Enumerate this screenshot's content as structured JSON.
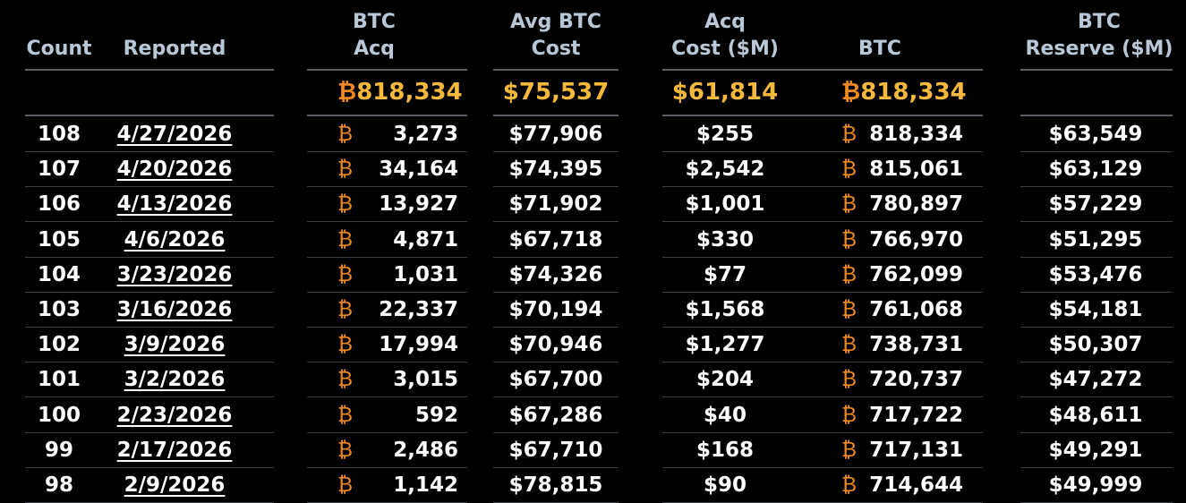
{
  "headers": {
    "count": "Count",
    "reported": "Reported",
    "btc_acq": [
      "BTC",
      "Acq"
    ],
    "avg_btc_cost": [
      "Avg BTC",
      "Cost"
    ],
    "acq_cost": [
      "Acq",
      "Cost ($M)"
    ],
    "btc": "BTC",
    "btc_reserve": [
      "BTC",
      "Reserve ($M)"
    ]
  },
  "summary": {
    "btc_acq": "818,334",
    "avg_btc_cost": "$75,537",
    "acq_cost": "$61,814",
    "btc": "818,334"
  },
  "btc_symbol": "₿",
  "rows": [
    {
      "count": "108",
      "reported": "4/27/2026",
      "btc_acq": "3,273",
      "avg_cost": "$77,906",
      "acq_cost": "$255",
      "btc": "818,334",
      "reserve": "$63,549"
    },
    {
      "count": "107",
      "reported": "4/20/2026",
      "btc_acq": "34,164",
      "avg_cost": "$74,395",
      "acq_cost": "$2,542",
      "btc": "815,061",
      "reserve": "$63,129"
    },
    {
      "count": "106",
      "reported": "4/13/2026",
      "btc_acq": "13,927",
      "avg_cost": "$71,902",
      "acq_cost": "$1,001",
      "btc": "780,897",
      "reserve": "$57,229"
    },
    {
      "count": "105",
      "reported": "4/6/2026",
      "btc_acq": "4,871",
      "avg_cost": "$67,718",
      "acq_cost": "$330",
      "btc": "766,970",
      "reserve": "$51,295"
    },
    {
      "count": "104",
      "reported": "3/23/2026",
      "btc_acq": "1,031",
      "avg_cost": "$74,326",
      "acq_cost": "$77",
      "btc": "762,099",
      "reserve": "$53,476"
    },
    {
      "count": "103",
      "reported": "3/16/2026",
      "btc_acq": "22,337",
      "avg_cost": "$70,194",
      "acq_cost": "$1,568",
      "btc": "761,068",
      "reserve": "$54,181"
    },
    {
      "count": "102",
      "reported": "3/9/2026",
      "btc_acq": "17,994",
      "avg_cost": "$70,946",
      "acq_cost": "$1,277",
      "btc": "738,731",
      "reserve": "$50,307"
    },
    {
      "count": "101",
      "reported": "3/2/2026",
      "btc_acq": "3,015",
      "avg_cost": "$67,700",
      "acq_cost": "$204",
      "btc": "720,737",
      "reserve": "$47,272"
    },
    {
      "count": "100",
      "reported": "2/23/2026",
      "btc_acq": "592",
      "avg_cost": "$67,286",
      "acq_cost": "$40",
      "btc": "717,722",
      "reserve": "$48,611"
    },
    {
      "count": "99",
      "reported": "2/17/2026",
      "btc_acq": "2,486",
      "avg_cost": "$67,710",
      "acq_cost": "$168",
      "btc": "717,131",
      "reserve": "$49,291"
    },
    {
      "count": "98",
      "reported": "2/9/2026",
      "btc_acq": "1,142",
      "avg_cost": "$78,815",
      "acq_cost": "$90",
      "btc": "714,644",
      "reserve": "$49,999"
    }
  ]
}
